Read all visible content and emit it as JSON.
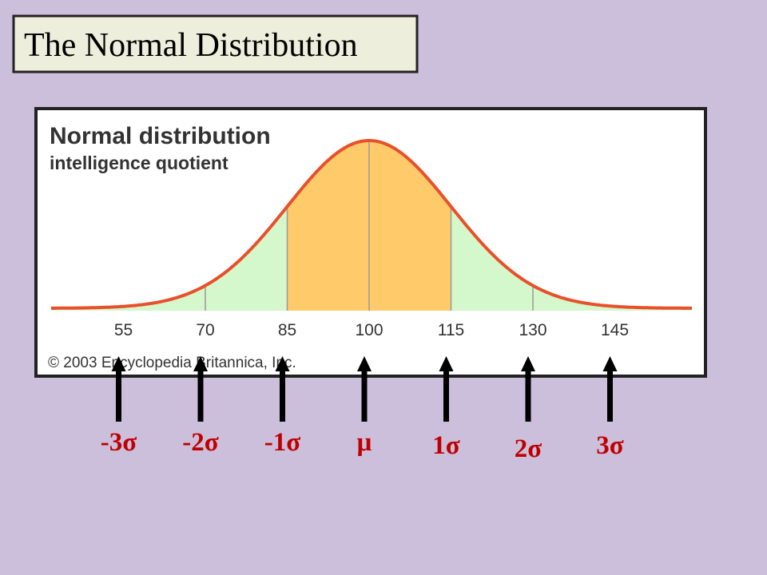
{
  "slide_title": "The Normal Distribution",
  "figure": {
    "title": "Normal distribution",
    "subtitle": "intelligence quotient",
    "x_labels": [
      55,
      70,
      85,
      100,
      115,
      130,
      145
    ],
    "credit": "© 2003 Encyclopedia Britannica, Inc."
  },
  "sigma_labels": [
    "-3σ",
    "-2σ",
    "-1σ",
    "μ",
    "1σ",
    "2σ",
    "3σ"
  ]
}
